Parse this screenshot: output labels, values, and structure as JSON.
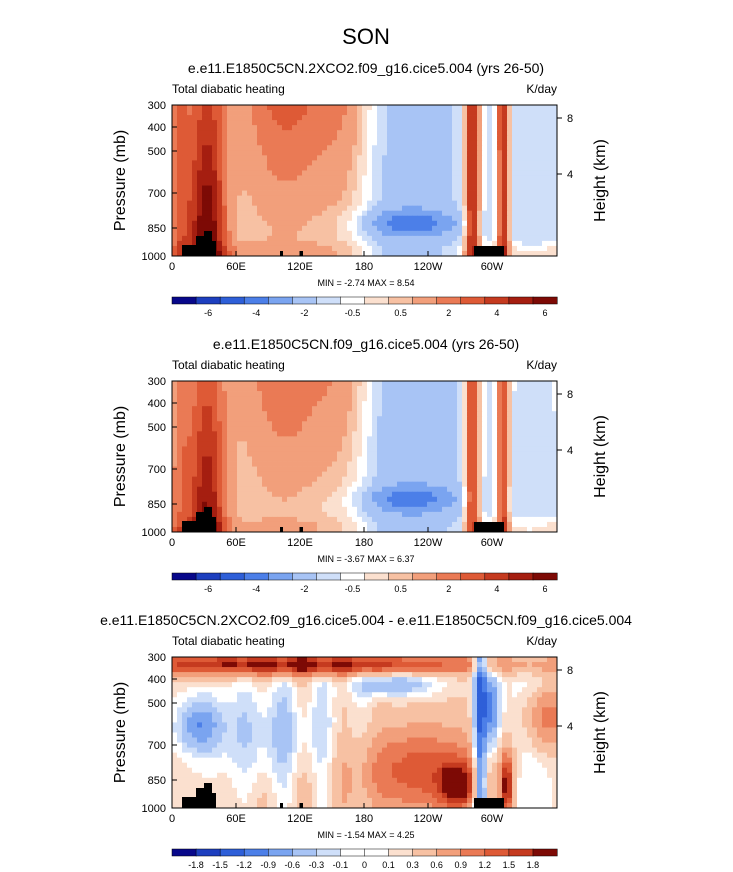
{
  "figure_title": "SON",
  "chart_data": [
    {
      "type": "heatmap",
      "title": "e.e11.E1850C5CN.2XCO2.f09_g16.cice5.004 (yrs 26-50)",
      "left_string": "Total diabatic heating",
      "right_string": "K/day",
      "ylabel": "Pressure (mb)",
      "ylabel_right": "Height (km)",
      "y_ticks": [
        "300",
        "400",
        "500",
        "700",
        "850",
        "1000"
      ],
      "y_ticks_right": [
        "8",
        "4"
      ],
      "x_ticks": [
        "0",
        "60E",
        "120E",
        "180",
        "120W",
        "60W"
      ],
      "stats": "MIN = -2.74  MAX =  8.54",
      "colorbar_labels": [
        "-6",
        "-4",
        "-2",
        "-0.5",
        "0.5",
        "2",
        "4",
        "6"
      ],
      "colorbar_colors": [
        "#08088a",
        "#1d3fbf",
        "#2e5fd8",
        "#4c7fe8",
        "#7aa4f0",
        "#a8c4f5",
        "#cfdff9",
        "#ffffff",
        "#fbe0cf",
        "#f7c1a3",
        "#f29f7b",
        "#ea7a55",
        "#de5a36",
        "#c53a1f",
        "#a51e10",
        "#7d0a05"
      ],
      "field": "warm"
    },
    {
      "type": "heatmap",
      "title": "e.e11.E1850C5CN.f09_g16.cice5.004 (yrs 26-50)",
      "left_string": "Total diabatic heating",
      "right_string": "K/day",
      "ylabel": "Pressure (mb)",
      "ylabel_right": "Height (km)",
      "y_ticks": [
        "300",
        "400",
        "500",
        "700",
        "850",
        "1000"
      ],
      "y_ticks_right": [
        "8",
        "4"
      ],
      "x_ticks": [
        "0",
        "60E",
        "120E",
        "180",
        "120W",
        "60W"
      ],
      "stats": "MIN = -3.67  MAX =  6.37",
      "colorbar_labels": [
        "-6",
        "-4",
        "-2",
        "-0.5",
        "0.5",
        "2",
        "4",
        "6"
      ],
      "colorbar_colors": [
        "#08088a",
        "#1d3fbf",
        "#2e5fd8",
        "#4c7fe8",
        "#7aa4f0",
        "#a8c4f5",
        "#cfdff9",
        "#ffffff",
        "#fbe0cf",
        "#f7c1a3",
        "#f29f7b",
        "#ea7a55",
        "#de5a36",
        "#c53a1f",
        "#a51e10",
        "#7d0a05"
      ],
      "field": "control"
    },
    {
      "type": "heatmap",
      "title": "e.e11.E1850C5CN.2XCO2.f09_g16.cice5.004 - e.e11.E1850C5CN.f09_g16.cice5.004",
      "left_string": "Total diabatic heating",
      "right_string": "K/day",
      "ylabel": "Pressure (mb)",
      "ylabel_right": "Height (km)",
      "y_ticks": [
        "300",
        "400",
        "500",
        "700",
        "850",
        "1000"
      ],
      "y_ticks_right": [
        "8",
        "4"
      ],
      "x_ticks": [
        "0",
        "60E",
        "120E",
        "180",
        "120W",
        "60W"
      ],
      "stats": "MIN = -1.54  MAX =  4.25",
      "colorbar_labels": [
        "-1.8",
        "-1.5",
        "-1.2",
        "-0.9",
        "-0.6",
        "-0.3",
        "-0.1",
        "0",
        "0.1",
        "0.3",
        "0.6",
        "0.9",
        "1.2",
        "1.5",
        "1.8"
      ],
      "colorbar_colors": [
        "#08088a",
        "#1d3fbf",
        "#2e5fd8",
        "#4c7fe8",
        "#7aa4f0",
        "#a8c4f5",
        "#cfdff9",
        "#ffffff",
        "#ffffff",
        "#fbe0cf",
        "#f7c1a3",
        "#f29f7b",
        "#ea7a55",
        "#de5a36",
        "#c53a1f",
        "#7d0a05"
      ],
      "field": "diff"
    }
  ]
}
